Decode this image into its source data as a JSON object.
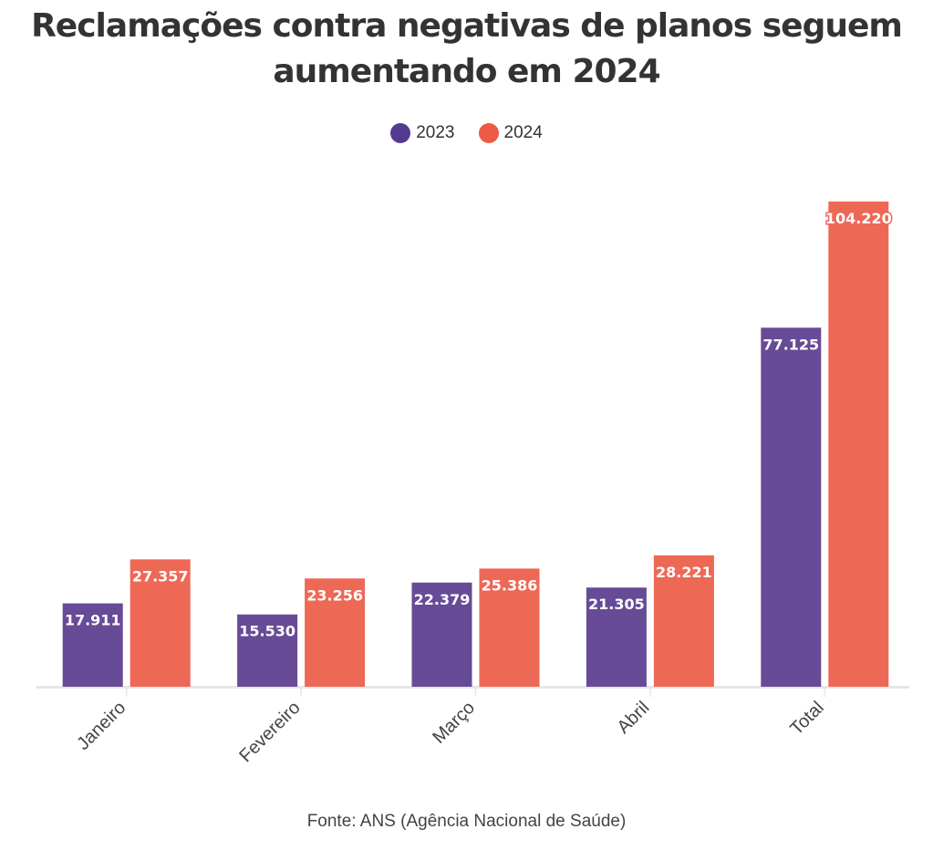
{
  "chart_data": {
    "type": "bar",
    "title": "Reclamações contra negativas de planos seguem aumentando em 2024",
    "title_lines": [
      "Reclamações contra negativas de planos seguem",
      "aumentando em 2024"
    ],
    "categories": [
      "Janeiro",
      "Fevereiro",
      "Março",
      "Abril",
      "Total"
    ],
    "series": [
      {
        "name": "2023",
        "color": "#674b96",
        "values": [
          17911,
          15530,
          22379,
          21305,
          77125
        ],
        "labels": [
          "17.911",
          "15.530",
          "22.379",
          "21.305",
          "77.125"
        ]
      },
      {
        "name": "2024",
        "color": "#ee6856",
        "values": [
          27357,
          23256,
          25386,
          28221,
          104220
        ],
        "labels": [
          "27.357",
          "23.256",
          "25.386",
          "28.221",
          "104.220"
        ]
      }
    ],
    "legend_colors": [
      "#553a91",
      "#ee5a45"
    ],
    "xlabel": "",
    "ylabel": "",
    "ylim": [
      0,
      104220
    ],
    "grid": false,
    "legend_position": "top-center",
    "source": "Fonte: ANS (Agência Nacional de Saúde)"
  }
}
